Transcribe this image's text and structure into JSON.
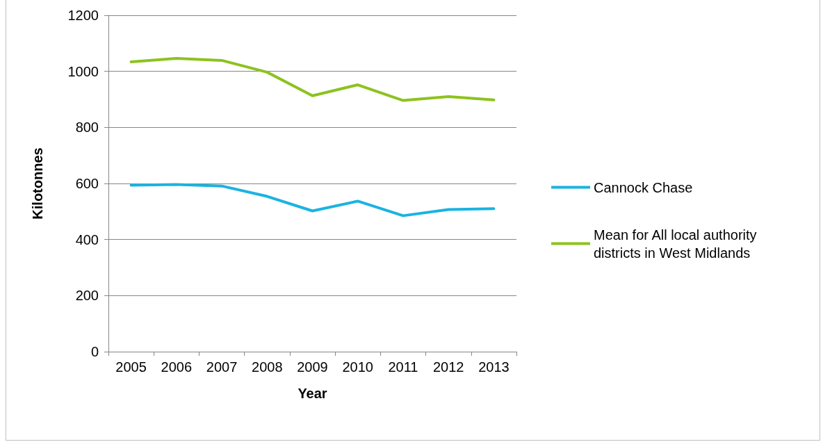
{
  "chart_data": {
    "type": "line",
    "xlabel": "Year",
    "ylabel": "Kilotonnes",
    "categories": [
      "2005",
      "2006",
      "2007",
      "2008",
      "2009",
      "2010",
      "2011",
      "2012",
      "2013"
    ],
    "series": [
      {
        "name": "Cannock Chase",
        "color": "#1ab3e0",
        "values": [
          594,
          596,
          591,
          554,
          502,
          537,
          485,
          507,
          510
        ]
      },
      {
        "name": "Mean for All local authority districts in West Midlands",
        "color": "#8dc21f",
        "values": [
          1034,
          1046,
          1039,
          997,
          913,
          952,
          896,
          910,
          898
        ]
      }
    ],
    "ylim": [
      0,
      1200
    ],
    "yticks": [
      0,
      200,
      400,
      600,
      800,
      1000,
      1200
    ],
    "grid": "y",
    "legend": "right",
    "marker": "none",
    "line_style": "solid"
  }
}
